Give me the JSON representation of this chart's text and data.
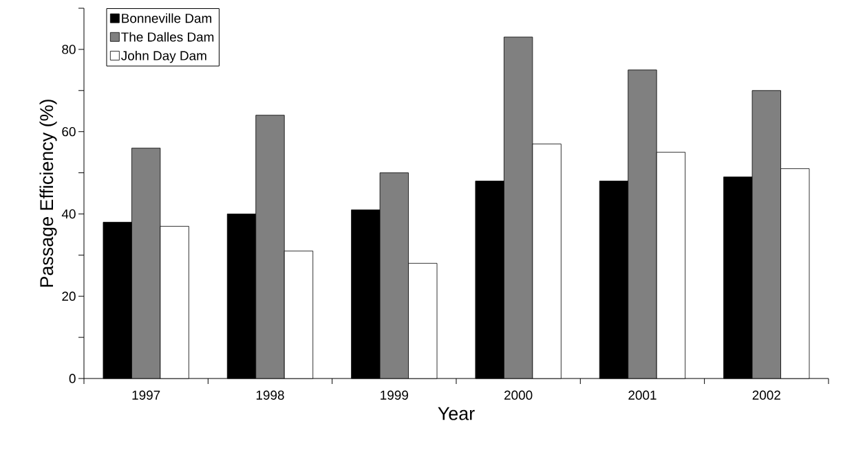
{
  "chart_data": {
    "type": "bar",
    "xlabel": "Year",
    "ylabel": "Passage Efficiency (%)",
    "categories": [
      "1997",
      "1998",
      "1999",
      "2000",
      "2001",
      "2002"
    ],
    "series": [
      {
        "name": "Bonneville Dam",
        "color": "#000000",
        "values": [
          38,
          40,
          41,
          48,
          48,
          49
        ]
      },
      {
        "name": "The Dalles Dam",
        "color": "#808080",
        "values": [
          56,
          64,
          50,
          83,
          75,
          70
        ]
      },
      {
        "name": "John Day Dam",
        "color": "#ffffff",
        "values": [
          37,
          31,
          28,
          57,
          55,
          51
        ]
      }
    ],
    "ylim": [
      0,
      90
    ],
    "yticks": [
      0,
      {
        "value": 10,
        "label": null
      },
      20,
      {
        "value": 30,
        "label": null
      },
      40,
      {
        "value": 50,
        "label": null
      },
      60,
      {
        "value": 70,
        "label": null
      },
      80,
      {
        "value": 90,
        "label": null
      }
    ],
    "legend": "top left",
    "grid": false
  }
}
